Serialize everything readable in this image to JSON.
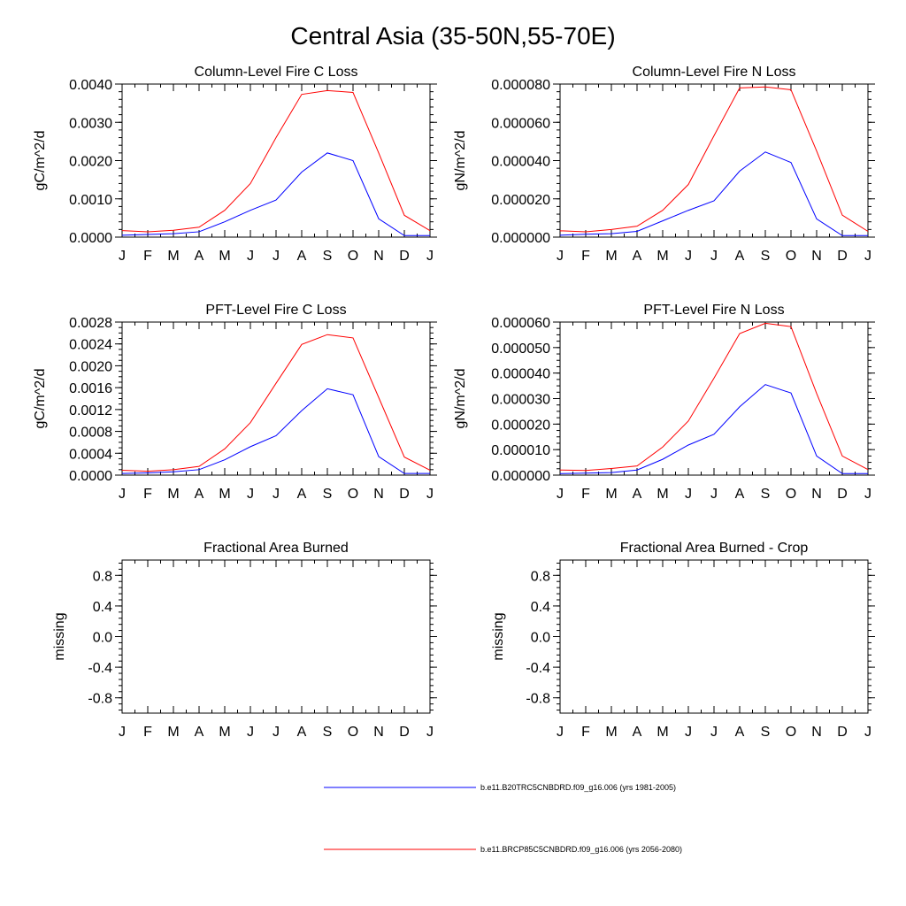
{
  "main_title": "Central Asia (35-50N,55-70E)",
  "series_colors": [
    "#0000ff",
    "#ff0000"
  ],
  "legend": [
    {
      "label": "b.e11.B20TRC5CNBDRD.f09_g16.006 (yrs 1981-2005)",
      "color": "#0000ff"
    },
    {
      "label": "b.e11.BRCP85C5CNBDRD.f09_g16.006 (yrs 2056-2080)",
      "color": "#ff0000"
    }
  ],
  "chart_data": [
    {
      "type": "line",
      "title": "Column-Level Fire C Loss",
      "ylabel": "gC/m^2/d",
      "xlabel": "",
      "categories": [
        "J",
        "F",
        "M",
        "A",
        "M",
        "J",
        "J",
        "A",
        "S",
        "O",
        "N",
        "D",
        "J"
      ],
      "ylim": [
        0,
        0.004
      ],
      "yticks": [
        0,
        0.001,
        0.002,
        0.003,
        0.004
      ],
      "ytick_labels": [
        "0.0000",
        "0.0010",
        "0.0020",
        "0.0030",
        "0.0040"
      ],
      "series": [
        {
          "name": "b.e11.B20TRC5CNBDRD.f09_g16.006 (yrs 1981-2005)",
          "values": [
            5e-05,
            7e-05,
            9e-05,
            0.00014,
            0.0004,
            0.0007,
            0.00097,
            0.0017,
            0.0022,
            0.002,
            0.00048,
            4e-05,
            4e-05
          ]
        },
        {
          "name": "b.e11.BRCP85C5CNBDRD.f09_g16.006 (yrs 2056-2080)",
          "values": [
            0.00017,
            0.00014,
            0.00018,
            0.00026,
            0.0007,
            0.0014,
            0.0026,
            0.00373,
            0.00383,
            0.00378,
            0.0022,
            0.00057,
            0.00017
          ]
        }
      ]
    },
    {
      "type": "line",
      "title": "Column-Level Fire N Loss",
      "ylabel": "gN/m^2/d",
      "xlabel": "",
      "categories": [
        "J",
        "F",
        "M",
        "A",
        "M",
        "J",
        "J",
        "A",
        "S",
        "O",
        "N",
        "D",
        "J"
      ],
      "ylim": [
        0,
        8e-05
      ],
      "yticks": [
        0,
        2e-05,
        4e-05,
        6e-05,
        8e-05
      ],
      "ytick_labels": [
        "0.000000",
        "0.000020",
        "0.000040",
        "0.000060",
        "0.000080"
      ],
      "series": [
        {
          "name": "b.e11.B20TRC5CNBDRD.f09_g16.006 (yrs 1981-2005)",
          "values": [
            1e-06,
            1.5e-06,
            1.8e-06,
            3e-06,
            8.5e-06,
            1.4e-05,
            1.9e-05,
            3.45e-05,
            4.45e-05,
            3.9e-05,
            9.5e-06,
            8e-07,
            8e-07
          ]
        },
        {
          "name": "b.e11.BRCP85C5CNBDRD.f09_g16.006 (yrs 2056-2080)",
          "values": [
            3.3e-06,
            2.8e-06,
            4e-06,
            5.7e-06,
            1.4e-05,
            2.75e-05,
            5.3e-05,
            7.8e-05,
            7.85e-05,
            7.7e-05,
            4.5e-05,
            1.15e-05,
            3e-06
          ]
        }
      ]
    },
    {
      "type": "line",
      "title": "PFT-Level Fire C Loss",
      "ylabel": "gC/m^2/d",
      "xlabel": "",
      "categories": [
        "J",
        "F",
        "M",
        "A",
        "M",
        "J",
        "J",
        "A",
        "S",
        "O",
        "N",
        "D",
        "J"
      ],
      "ylim": [
        0,
        0.0028
      ],
      "yticks": [
        0,
        0.0004,
        0.0008,
        0.0012,
        0.0016,
        0.002,
        0.0024,
        0.0028
      ],
      "ytick_labels": [
        "0.0000",
        "0.0004",
        "0.0008",
        "0.0012",
        "0.0016",
        "0.0020",
        "0.0024",
        "0.0028"
      ],
      "series": [
        {
          "name": "b.e11.B20TRC5CNBDRD.f09_g16.006 (yrs 1981-2005)",
          "values": [
            3e-05,
            4e-05,
            6e-05,
            0.0001,
            0.00028,
            0.00052,
            0.00072,
            0.00118,
            0.00158,
            0.00147,
            0.00034,
            3e-05,
            3e-05
          ]
        },
        {
          "name": "b.e11.BRCP85C5CNBDRD.f09_g16.006 (yrs 2056-2080)",
          "values": [
            9e-05,
            7e-05,
            0.0001,
            0.00016,
            0.00048,
            0.00096,
            0.00168,
            0.00239,
            0.00257,
            0.00251,
            0.00142,
            0.00033,
            9e-05
          ]
        }
      ]
    },
    {
      "type": "line",
      "title": "PFT-Level Fire N Loss",
      "ylabel": "gN/m^2/d",
      "xlabel": "",
      "categories": [
        "J",
        "F",
        "M",
        "A",
        "M",
        "J",
        "J",
        "A",
        "S",
        "O",
        "N",
        "D",
        "J"
      ],
      "ylim": [
        0,
        6e-05
      ],
      "yticks": [
        0,
        1e-05,
        2e-05,
        3e-05,
        4e-05,
        5e-05,
        6e-05
      ],
      "ytick_labels": [
        "0.000000",
        "0.000010",
        "0.000020",
        "0.000030",
        "0.000040",
        "0.000050",
        "0.000060"
      ],
      "series": [
        {
          "name": "b.e11.B20TRC5CNBDRD.f09_g16.006 (yrs 1981-2005)",
          "values": [
            6e-07,
            8e-07,
            1e-06,
            2e-06,
            6.2e-06,
            1.18e-05,
            1.6e-05,
            2.68e-05,
            3.55e-05,
            3.22e-05,
            7.5e-06,
            6e-07,
            6e-07
          ]
        },
        {
          "name": "b.e11.BRCP85C5CNBDRD.f09_g16.006 (yrs 2056-2080)",
          "values": [
            2e-06,
            1.8e-06,
            2.6e-06,
            3.6e-06,
            1.1e-05,
            2.12e-05,
            3.8e-05,
            5.55e-05,
            5.95e-05,
            5.82e-05,
            3.2e-05,
            7.5e-06,
            2.2e-06
          ]
        }
      ]
    },
    {
      "type": "line",
      "title": "Fractional Area Burned",
      "ylabel": "missing",
      "xlabel": "",
      "categories": [
        "J",
        "F",
        "M",
        "A",
        "M",
        "J",
        "J",
        "A",
        "S",
        "O",
        "N",
        "D",
        "J"
      ],
      "ylim": [
        -1,
        1
      ],
      "yticks": [
        -0.8,
        -0.4,
        0,
        0.4,
        0.8
      ],
      "ytick_labels": [
        "-0.8",
        "-0.4",
        "0.0",
        "0.4",
        "0.8"
      ],
      "series": []
    },
    {
      "type": "line",
      "title": "Fractional Area Burned - Crop",
      "ylabel": "missing",
      "xlabel": "",
      "categories": [
        "J",
        "F",
        "M",
        "A",
        "M",
        "J",
        "J",
        "A",
        "S",
        "O",
        "N",
        "D",
        "J"
      ],
      "ylim": [
        -1,
        1
      ],
      "yticks": [
        -0.8,
        -0.4,
        0,
        0.4,
        0.8
      ],
      "ytick_labels": [
        "-0.8",
        "-0.4",
        "0.0",
        "0.4",
        "0.8"
      ],
      "series": []
    }
  ]
}
